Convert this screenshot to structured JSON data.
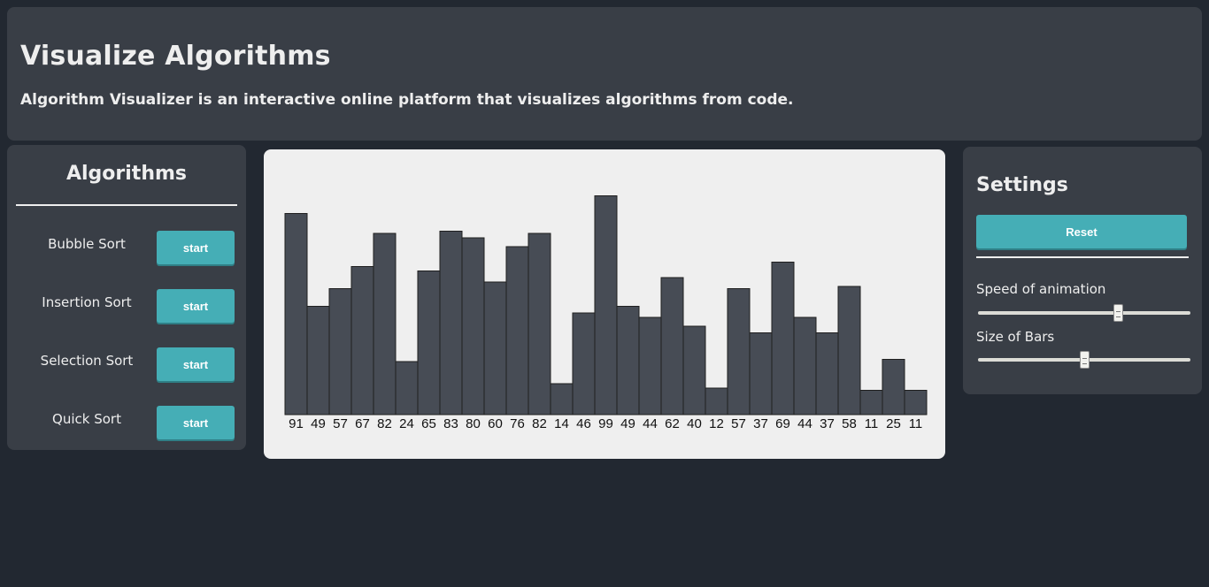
{
  "header": {
    "title": "Visualize Algorithms",
    "subtitle": "Algorithm Visualizer is an interactive online platform that visualizes algorithms from code."
  },
  "algorithms": {
    "title": "Algorithms",
    "items": [
      {
        "label": "Bubble Sort",
        "button": "start"
      },
      {
        "label": "Insertion Sort",
        "button": "start"
      },
      {
        "label": "Selection Sort",
        "button": "start"
      },
      {
        "label": "Quick Sort",
        "button": "start"
      }
    ]
  },
  "settings": {
    "title": "Settings",
    "reset_label": "Reset",
    "speed_label": "Speed of animation",
    "speed_value": 0.67,
    "size_label": "Size of Bars",
    "size_value": 0.5
  },
  "colors": {
    "background": "#222831",
    "panel": "#393e46",
    "accent": "#45aeb6",
    "bar_fill": "#474c55",
    "chart_bg": "#efefef"
  },
  "chart_data": {
    "type": "bar",
    "values": [
      91,
      49,
      57,
      67,
      82,
      24,
      65,
      83,
      80,
      60,
      76,
      82,
      14,
      46,
      99,
      49,
      44,
      62,
      40,
      12,
      57,
      37,
      69,
      44,
      37,
      58,
      11,
      25,
      11
    ],
    "categories": [
      "91",
      "49",
      "57",
      "67",
      "82",
      "24",
      "65",
      "83",
      "80",
      "60",
      "76",
      "82",
      "14",
      "46",
      "99",
      "49",
      "44",
      "62",
      "40",
      "12",
      "57",
      "37",
      "69",
      "44",
      "37",
      "58",
      "11",
      "25",
      "11"
    ],
    "ylim": [
      0,
      108
    ]
  }
}
